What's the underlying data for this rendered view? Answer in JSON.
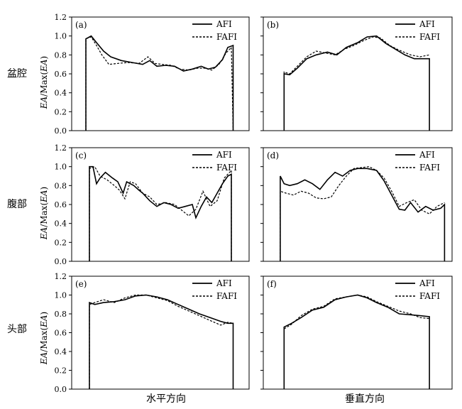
{
  "row_labels": [
    "盆腔",
    "腹部",
    "头部"
  ],
  "ylabel": {
    "prefix": "EA",
    "mid": "/Max(",
    "suffix": "EA",
    "close": ")"
  },
  "xlabels": [
    "水平方向",
    "垂直方向"
  ],
  "yticks": [
    "0.0",
    "0.2",
    "0.4",
    "0.6",
    "0.8",
    "1.0",
    "1.2"
  ],
  "chart_data": [
    {
      "type": "line",
      "panel": "(a)",
      "ylim": [
        0,
        1.2
      ],
      "xlim": [
        0,
        1
      ],
      "legend_position": "top-right",
      "series": [
        {
          "name": "AFI",
          "x": [
            0.08,
            0.08,
            0.11,
            0.14,
            0.18,
            0.22,
            0.28,
            0.34,
            0.4,
            0.44,
            0.48,
            0.53,
            0.58,
            0.63,
            0.68,
            0.73,
            0.77,
            0.81,
            0.85,
            0.88,
            0.91,
            0.91
          ],
          "y": [
            0.0,
            0.97,
            1.0,
            0.93,
            0.84,
            0.78,
            0.74,
            0.72,
            0.7,
            0.74,
            0.68,
            0.69,
            0.68,
            0.63,
            0.65,
            0.68,
            0.65,
            0.67,
            0.75,
            0.88,
            0.9,
            0.0
          ]
        },
        {
          "name": "FAFI",
          "x": [
            0.08,
            0.08,
            0.11,
            0.14,
            0.17,
            0.21,
            0.26,
            0.32,
            0.38,
            0.43,
            0.47,
            0.51,
            0.56,
            0.61,
            0.66,
            0.71,
            0.75,
            0.79,
            0.83,
            0.87,
            0.9,
            0.91
          ],
          "y": [
            0.0,
            0.97,
            0.99,
            0.9,
            0.8,
            0.7,
            0.71,
            0.72,
            0.71,
            0.78,
            0.71,
            0.7,
            0.69,
            0.65,
            0.64,
            0.66,
            0.66,
            0.64,
            0.7,
            0.82,
            0.88,
            0.0
          ]
        }
      ]
    },
    {
      "type": "line",
      "panel": "(b)",
      "ylim": [
        0,
        1.2
      ],
      "xlim": [
        0,
        1
      ],
      "legend_position": "top-right",
      "series": [
        {
          "name": "AFI",
          "x": [
            0.11,
            0.11,
            0.14,
            0.18,
            0.23,
            0.28,
            0.34,
            0.39,
            0.44,
            0.5,
            0.55,
            0.6,
            0.65,
            0.7,
            0.75,
            0.8,
            0.84,
            0.88,
            0.88
          ],
          "y": [
            0.0,
            0.6,
            0.59,
            0.66,
            0.76,
            0.8,
            0.83,
            0.8,
            0.88,
            0.93,
            0.99,
            1.0,
            0.92,
            0.86,
            0.8,
            0.76,
            0.76,
            0.76,
            0.0
          ]
        },
        {
          "name": "FAFI",
          "x": [
            0.11,
            0.11,
            0.14,
            0.18,
            0.23,
            0.28,
            0.33,
            0.38,
            0.43,
            0.48,
            0.53,
            0.58,
            0.62,
            0.67,
            0.72,
            0.78,
            0.83,
            0.88
          ],
          "y": [
            0.0,
            0.62,
            0.6,
            0.68,
            0.78,
            0.84,
            0.82,
            0.8,
            0.86,
            0.9,
            0.95,
            0.99,
            0.98,
            0.9,
            0.85,
            0.8,
            0.78,
            0.8
          ]
        }
      ]
    },
    {
      "type": "line",
      "panel": "(c)",
      "ylim": [
        0,
        1.2
      ],
      "xlim": [
        0,
        1
      ],
      "legend_position": "top-right",
      "series": [
        {
          "name": "AFI",
          "x": [
            0.1,
            0.1,
            0.12,
            0.14,
            0.16,
            0.19,
            0.23,
            0.26,
            0.29,
            0.31,
            0.35,
            0.38,
            0.4,
            0.44,
            0.48,
            0.52,
            0.56,
            0.6,
            0.64,
            0.68,
            0.7,
            0.73,
            0.76,
            0.79,
            0.82,
            0.85,
            0.88,
            0.9,
            0.9
          ],
          "y": [
            0.0,
            1.0,
            1.0,
            0.82,
            0.88,
            0.94,
            0.88,
            0.84,
            0.72,
            0.84,
            0.8,
            0.75,
            0.72,
            0.64,
            0.58,
            0.62,
            0.6,
            0.56,
            0.58,
            0.6,
            0.46,
            0.58,
            0.68,
            0.62,
            0.72,
            0.82,
            0.9,
            0.92,
            0.0
          ]
        },
        {
          "name": "FAFI",
          "x": [
            0.1,
            0.1,
            0.13,
            0.16,
            0.2,
            0.24,
            0.27,
            0.3,
            0.33,
            0.36,
            0.4,
            0.44,
            0.48,
            0.53,
            0.58,
            0.62,
            0.66,
            0.7,
            0.74,
            0.78,
            0.82,
            0.86,
            0.9,
            0.9
          ],
          "y": [
            0.0,
            0.98,
            1.0,
            0.9,
            0.86,
            0.8,
            0.75,
            0.66,
            0.84,
            0.82,
            0.72,
            0.68,
            0.6,
            0.62,
            0.6,
            0.54,
            0.48,
            0.55,
            0.74,
            0.58,
            0.64,
            0.88,
            0.96,
            0.0
          ]
        }
      ]
    },
    {
      "type": "line",
      "panel": "(d)",
      "ylim": [
        0,
        1.2
      ],
      "xlim": [
        0,
        1
      ],
      "legend_position": "top-right",
      "series": [
        {
          "name": "AFI",
          "x": [
            0.09,
            0.09,
            0.11,
            0.14,
            0.18,
            0.22,
            0.26,
            0.3,
            0.34,
            0.38,
            0.42,
            0.46,
            0.5,
            0.55,
            0.6,
            0.64,
            0.68,
            0.72,
            0.75,
            0.78,
            0.82,
            0.86,
            0.9,
            0.94,
            0.96,
            0.96
          ],
          "y": [
            0.0,
            0.9,
            0.82,
            0.8,
            0.82,
            0.86,
            0.82,
            0.76,
            0.86,
            0.94,
            0.9,
            0.96,
            0.98,
            0.98,
            0.96,
            0.85,
            0.7,
            0.55,
            0.54,
            0.62,
            0.52,
            0.58,
            0.54,
            0.56,
            0.6,
            0.0
          ]
        },
        {
          "name": "FAFI",
          "x": [
            0.09,
            0.09,
            0.12,
            0.16,
            0.2,
            0.24,
            0.28,
            0.32,
            0.36,
            0.4,
            0.44,
            0.48,
            0.52,
            0.56,
            0.6,
            0.64,
            0.68,
            0.72,
            0.76,
            0.8,
            0.84,
            0.88,
            0.92,
            0.96
          ],
          "y": [
            0.0,
            0.74,
            0.72,
            0.7,
            0.74,
            0.72,
            0.67,
            0.66,
            0.68,
            0.8,
            0.9,
            0.98,
            0.99,
            1.0,
            0.96,
            0.88,
            0.74,
            0.58,
            0.62,
            0.65,
            0.54,
            0.5,
            0.58,
            0.62
          ]
        }
      ]
    },
    {
      "type": "line",
      "panel": "(e)",
      "ylim": [
        0,
        1.2
      ],
      "xlim": [
        0,
        1
      ],
      "legend_position": "top-right",
      "series": [
        {
          "name": "AFI",
          "x": [
            0.1,
            0.1,
            0.13,
            0.18,
            0.24,
            0.3,
            0.36,
            0.42,
            0.48,
            0.54,
            0.6,
            0.66,
            0.72,
            0.78,
            0.84,
            0.88,
            0.91,
            0.91
          ],
          "y": [
            0.0,
            0.92,
            0.9,
            0.92,
            0.93,
            0.95,
            0.99,
            1.0,
            0.98,
            0.95,
            0.9,
            0.85,
            0.8,
            0.76,
            0.72,
            0.7,
            0.7,
            0.0
          ]
        },
        {
          "name": "FAFI",
          "x": [
            0.1,
            0.1,
            0.13,
            0.18,
            0.24,
            0.3,
            0.36,
            0.42,
            0.48,
            0.54,
            0.6,
            0.66,
            0.72,
            0.78,
            0.84,
            0.88,
            0.91
          ],
          "y": [
            0.0,
            0.9,
            0.92,
            0.95,
            0.92,
            0.97,
            1.0,
            1.0,
            0.97,
            0.94,
            0.88,
            0.83,
            0.78,
            0.73,
            0.68,
            0.71,
            0.7
          ]
        }
      ]
    },
    {
      "type": "line",
      "panel": "(f)",
      "ylim": [
        0,
        1.2
      ],
      "xlim": [
        0,
        1
      ],
      "legend_position": "top-right",
      "series": [
        {
          "name": "AFI",
          "x": [
            0.11,
            0.11,
            0.15,
            0.2,
            0.26,
            0.32,
            0.38,
            0.44,
            0.5,
            0.55,
            0.6,
            0.66,
            0.72,
            0.78,
            0.83,
            0.88,
            0.88
          ],
          "y": [
            0.0,
            0.66,
            0.7,
            0.76,
            0.84,
            0.87,
            0.95,
            0.98,
            1.0,
            0.97,
            0.92,
            0.87,
            0.8,
            0.79,
            0.78,
            0.77,
            0.0
          ]
        },
        {
          "name": "FAFI",
          "x": [
            0.11,
            0.11,
            0.15,
            0.2,
            0.26,
            0.32,
            0.38,
            0.44,
            0.5,
            0.55,
            0.6,
            0.66,
            0.72,
            0.78,
            0.83,
            0.88
          ],
          "y": [
            0.0,
            0.64,
            0.69,
            0.78,
            0.85,
            0.88,
            0.96,
            0.98,
            1.0,
            0.98,
            0.93,
            0.88,
            0.83,
            0.8,
            0.76,
            0.75
          ]
        }
      ]
    }
  ]
}
